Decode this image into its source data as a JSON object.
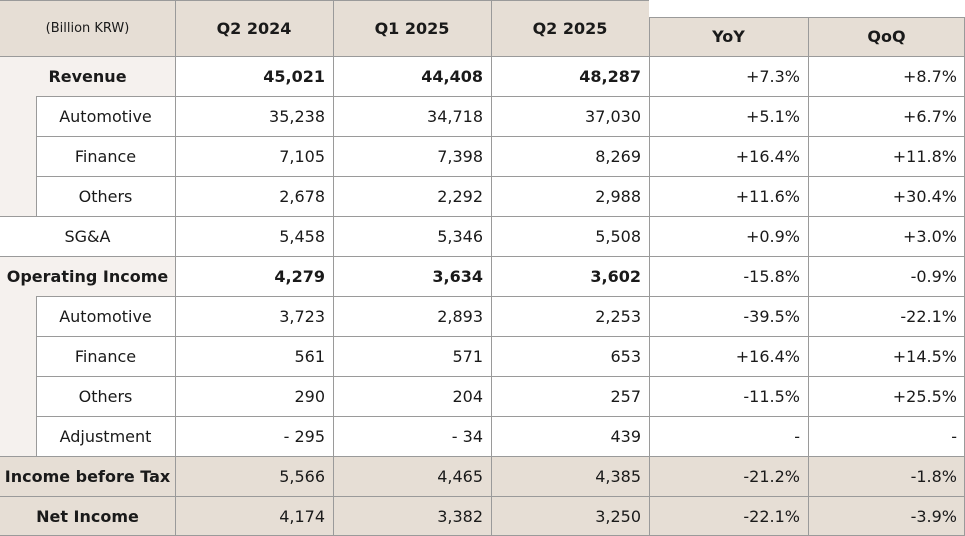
{
  "table": {
    "unit_label": "(Billion KRW)",
    "columns": [
      "Q2 2024",
      "Q1 2025",
      "Q2 2025",
      "YoY",
      "QoQ"
    ],
    "rows": [
      {
        "label": "Revenue",
        "values": [
          "45,021",
          "44,408",
          "48,287",
          "+7.3%",
          "+8.7%"
        ]
      },
      {
        "label": "Automotive",
        "values": [
          "35,238",
          "34,718",
          "37,030",
          "+5.1%",
          "+6.7%"
        ]
      },
      {
        "label": "Finance",
        "values": [
          "7,105",
          "7,398",
          "8,269",
          "+16.4%",
          "+11.8%"
        ]
      },
      {
        "label": "Others",
        "values": [
          "2,678",
          "2,292",
          "2,988",
          "+11.6%",
          "+30.4%"
        ]
      },
      {
        "label": "SG&A",
        "values": [
          "5,458",
          "5,346",
          "5,508",
          "+0.9%",
          "+3.0%"
        ]
      },
      {
        "label": "Operating Income",
        "values": [
          "4,279",
          "3,634",
          "3,602",
          "-15.8%",
          "-0.9%"
        ]
      },
      {
        "label": "Automotive",
        "values": [
          "3,723",
          "2,893",
          "2,253",
          "-39.5%",
          "-22.1%"
        ]
      },
      {
        "label": "Finance",
        "values": [
          "561",
          "571",
          "653",
          "+16.4%",
          "+14.5%"
        ]
      },
      {
        "label": "Others",
        "values": [
          "290",
          "204",
          "257",
          "-11.5%",
          "+25.5%"
        ]
      },
      {
        "label": "Adjustment",
        "values": [
          "- 295",
          "- 34",
          "439",
          "-",
          "-"
        ]
      },
      {
        "label": "Income before Tax",
        "values": [
          "5,566",
          "4,465",
          "4,385",
          "-21.2%",
          "-1.8%"
        ]
      },
      {
        "label": "Net Income",
        "values": [
          "4,174",
          "3,382",
          "3,250",
          "-22.1%",
          "-3.9%"
        ]
      }
    ]
  }
}
